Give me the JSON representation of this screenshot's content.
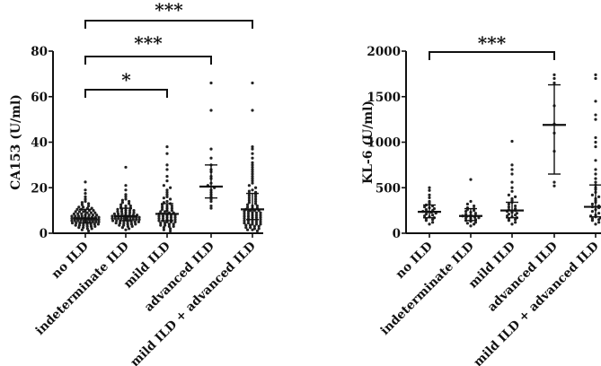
{
  "chart_data": [
    {
      "type": "scatter",
      "title": "",
      "ylabel": "CA153 (U/ml)",
      "xlabel": "",
      "ylim": [
        0,
        80
      ],
      "yticks": [
        0,
        20,
        40,
        60,
        80
      ],
      "categories": [
        "no ILD",
        "indeterminate ILD",
        "mild ILD",
        "advanced ILD",
        "mild ILD + advanced ILD"
      ],
      "median": [
        6.5,
        7.5,
        8.5,
        20.5,
        10.5
      ],
      "q1": [
        4.5,
        5.5,
        5.5,
        15.5,
        6
      ],
      "q3": [
        10.5,
        11,
        13,
        30,
        17.5
      ],
      "points": [
        [
          22.5,
          19,
          17.5,
          16,
          15,
          14,
          13.5,
          13,
          12.5,
          12,
          11.5,
          11.5,
          11,
          11,
          10.5,
          10.5,
          10,
          10,
          10,
          9.5,
          9.5,
          9.5,
          9,
          9,
          9,
          8.5,
          8.5,
          8.5,
          8,
          8,
          8,
          8,
          7.5,
          7.5,
          7.5,
          7.5,
          7,
          7,
          7,
          7,
          7,
          6.5,
          6.5,
          6.5,
          6.5,
          6.5,
          6.5,
          6,
          6,
          6,
          6,
          6,
          6,
          5.5,
          5.5,
          5.5,
          5.5,
          5.5,
          5,
          5,
          5,
          5,
          5,
          4.5,
          4.5,
          4.5,
          4.5,
          4,
          4,
          4,
          4,
          3.5,
          3.5,
          3.5,
          3,
          3,
          3,
          2.5,
          2.5,
          2,
          2,
          1.5,
          1
        ],
        [
          29,
          21,
          19,
          17,
          16,
          15,
          14.5,
          14,
          13.5,
          13,
          12.5,
          12,
          12,
          11.5,
          11,
          11,
          10.5,
          10.5,
          10,
          10,
          10,
          9.5,
          9.5,
          9,
          9,
          9,
          8.5,
          8.5,
          8.5,
          8,
          8,
          8,
          8,
          7.5,
          7.5,
          7.5,
          7.5,
          7.5,
          7,
          7,
          7,
          7,
          7,
          6.5,
          6.5,
          6.5,
          6.5,
          6.5,
          6,
          6,
          6,
          6,
          6,
          5.5,
          5.5,
          5.5,
          5.5,
          5,
          5,
          5,
          5,
          4.5,
          4.5,
          4.5,
          4,
          4,
          4,
          3.5,
          3.5,
          3,
          3,
          2.5,
          2,
          1.5
        ],
        [
          38,
          35,
          30,
          28,
          25,
          23,
          21,
          20,
          19,
          18,
          17,
          16,
          15.5,
          15,
          14,
          13.5,
          13,
          12.5,
          12,
          12,
          11.5,
          11,
          11,
          10.5,
          10,
          10,
          9.5,
          9.5,
          9,
          9,
          8.5,
          8.5,
          8,
          8,
          8,
          7.5,
          7.5,
          7,
          7,
          7,
          6.5,
          6.5,
          6,
          6,
          6,
          5.5,
          5.5,
          5,
          5,
          5,
          4.5,
          4.5,
          4,
          4,
          3.5,
          3.5,
          3,
          3,
          2.5,
          2,
          1.5,
          1
        ],
        [
          66,
          54,
          37,
          33,
          30,
          28,
          27,
          25,
          24,
          22,
          21,
          20,
          19,
          18,
          17,
          16,
          15,
          14,
          12,
          11
        ],
        [
          66,
          54,
          38,
          37,
          35,
          33,
          31,
          30,
          29,
          28,
          27,
          26,
          25,
          24,
          23,
          22,
          21,
          20,
          19,
          18.5,
          18,
          17.5,
          17,
          16.5,
          16,
          15.5,
          15,
          14.5,
          14,
          13.5,
          13,
          12.5,
          12,
          12,
          11.5,
          11,
          11,
          10.5,
          10,
          10,
          10,
          9.5,
          9.5,
          9,
          9,
          9,
          8.5,
          8.5,
          8,
          8,
          8,
          7.5,
          7.5,
          7,
          7,
          7,
          6.5,
          6.5,
          6,
          6,
          6,
          5.5,
          5.5,
          5,
          5,
          5,
          4.5,
          4.5,
          4,
          4,
          4,
          3.5,
          3.5,
          3,
          3,
          2.5,
          2.5,
          2,
          2,
          1.5,
          1.5,
          1
        ]
      ],
      "significance": [
        {
          "from": 0,
          "to": 2,
          "label": "*"
        },
        {
          "from": 0,
          "to": 3,
          "label": "***"
        },
        {
          "from": 0,
          "to": 4,
          "label": "***"
        }
      ]
    },
    {
      "type": "scatter",
      "title": "",
      "ylabel": "KL-6 (U/ml)",
      "xlabel": "",
      "ylim": [
        0,
        2000
      ],
      "yticks": [
        0,
        500,
        1000,
        1500,
        2000
      ],
      "categories": [
        "no ILD",
        "indeterminate ILD",
        "mild ILD",
        "advanced ILD",
        "mild ILD + advanced ILD"
      ],
      "median": [
        235,
        190,
        250,
        1190,
        290
      ],
      "q1": [
        170,
        140,
        170,
        650,
        180
      ],
      "q3": [
        310,
        270,
        340,
        1630,
        530
      ],
      "points": [
        [
          500,
          470,
          420,
          390,
          350,
          330,
          310,
          300,
          290,
          280,
          270,
          260,
          250,
          240,
          235,
          230,
          220,
          210,
          200,
          190,
          180,
          170,
          160,
          150,
          140,
          120,
          100
        ],
        [
          590,
          350,
          320,
          300,
          280,
          270,
          260,
          250,
          240,
          230,
          220,
          210,
          200,
          195,
          190,
          185,
          180,
          175,
          170,
          165,
          160,
          150,
          140,
          130,
          120,
          110,
          100,
          80
        ],
        [
          1010,
          750,
          700,
          650,
          560,
          500,
          460,
          420,
          400,
          380,
          360,
          340,
          320,
          300,
          290,
          270,
          260,
          250,
          240,
          230,
          220,
          210,
          200,
          190,
          180,
          170,
          160,
          150,
          140,
          120,
          100
        ],
        [
          1740,
          1700,
          1650,
          1400,
          1200,
          1100,
          900,
          560,
          520
        ],
        [
          1740,
          1700,
          1450,
          1300,
          1250,
          1050,
          1000,
          950,
          800,
          700,
          650,
          600,
          560,
          530,
          500,
          480,
          450,
          420,
          400,
          380,
          360,
          340,
          320,
          300,
          290,
          280,
          260,
          240,
          220,
          200,
          190,
          180,
          170,
          160,
          150,
          140,
          120,
          100
        ]
      ],
      "significance": [
        {
          "from": 0,
          "to": 3,
          "label": "***"
        }
      ]
    }
  ]
}
